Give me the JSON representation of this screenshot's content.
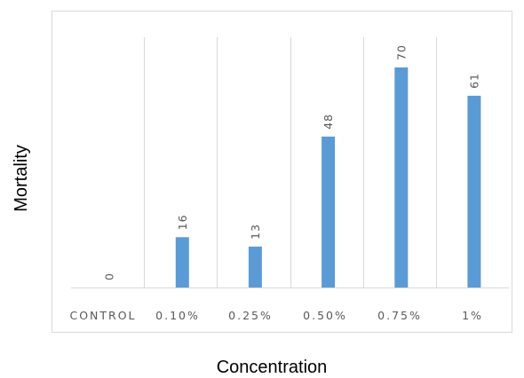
{
  "chart_data": {
    "type": "bar",
    "title": "",
    "xlabel": "Concentration",
    "ylabel": "Mortality",
    "categories": [
      "CONTROL",
      "0.10%",
      "0.25%",
      "0.50%",
      "0.75%",
      "1%"
    ],
    "values": [
      0,
      16,
      13,
      48,
      70,
      61
    ],
    "data_labels": [
      "0",
      "16",
      "13",
      "48",
      "70",
      "61"
    ],
    "ylim": [
      0,
      80
    ],
    "grid": "vertical",
    "legend": "none",
    "bar_color": "#5B9BD5",
    "gridline_color": "#D9D9D9",
    "text_color": "#595959"
  }
}
